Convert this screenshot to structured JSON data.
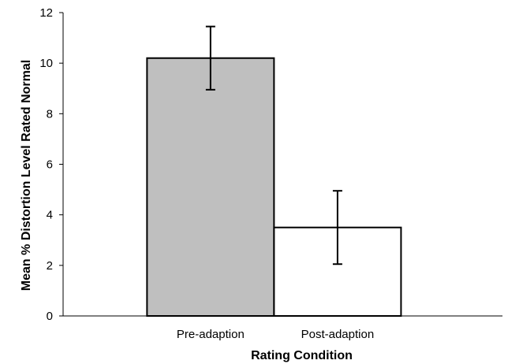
{
  "chart_data": {
    "type": "bar",
    "xlabel": "Rating Condition",
    "ylabel": "Mean % Distortion Level Rated Normal",
    "categories": [
      "Pre-adaption",
      "Post-adaption"
    ],
    "values": [
      10.2,
      3.5
    ],
    "error_bars": [
      {
        "low": 8.95,
        "high": 11.45
      },
      {
        "low": 2.05,
        "high": 4.95
      }
    ],
    "bar_colors": [
      "#bfbfbf",
      "#ffffff"
    ],
    "edge_color": "#000000",
    "ylim": [
      0,
      12
    ],
    "yticks": [
      0,
      2,
      4,
      6,
      8,
      10,
      12
    ],
    "grid": false,
    "legend": false
  }
}
